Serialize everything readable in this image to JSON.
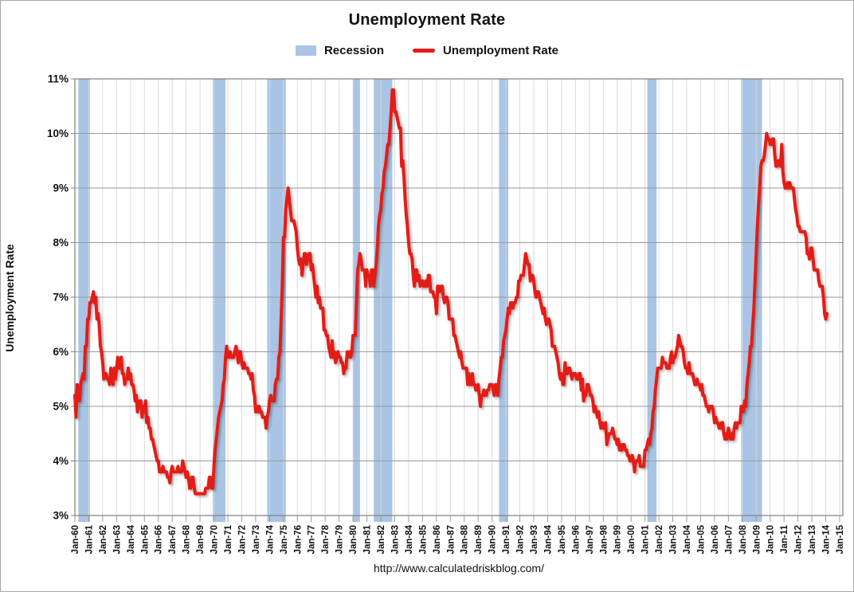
{
  "title": "Unemployment Rate",
  "legend": {
    "recession_label": "Recession",
    "series_label": "Unemployment Rate"
  },
  "footer": {
    "url": "http://www.calculatedriskblog.com/"
  },
  "colors": {
    "line": "#e41b17",
    "recession_band": "#a9c4e4",
    "grid_horizontal": "#999999",
    "grid_vertical": "#d9d9d9",
    "plot_border": "#7f7f7f",
    "tick": "#999999",
    "text": "#000000"
  },
  "chart_data": {
    "type": "line",
    "title": "Unemployment Rate",
    "ylabel": "Unemployment Rate",
    "unit": "percent",
    "ylim": [
      3,
      11
    ],
    "y_tick_labels": [
      "3%",
      "4%",
      "5%",
      "6%",
      "7%",
      "8%",
      "9%",
      "10%",
      "11%"
    ],
    "x_tick_labels": [
      "Jan-60",
      "Jan-61",
      "Jan-62",
      "Jan-63",
      "Jan-64",
      "Jan-65",
      "Jan-66",
      "Jan-67",
      "Jan-68",
      "Jan-69",
      "Jan-70",
      "Jan-71",
      "Jan-72",
      "Jan-73",
      "Jan-74",
      "Jan-75",
      "Jan-76",
      "Jan-77",
      "Jan-78",
      "Jan-79",
      "Jan-80",
      "Jan-81",
      "Jan-82",
      "Jan-83",
      "Jan-84",
      "Jan-85",
      "Jan-86",
      "Jan-87",
      "Jan-88",
      "Jan-89",
      "Jan-90",
      "Jan-91",
      "Jan-92",
      "Jan-93",
      "Jan-94",
      "Jan-95",
      "Jan-96",
      "Jan-97",
      "Jan-98",
      "Jan-99",
      "Jan-00",
      "Jan-01",
      "Jan-02",
      "Jan-03",
      "Jan-04",
      "Jan-05",
      "Jan-06",
      "Jan-07",
      "Jan-08",
      "Jan-09",
      "Jan-10",
      "Jan-11",
      "Jan-12",
      "Jan-13",
      "Jan-14",
      "Jan-15"
    ],
    "xlim_years": [
      1960,
      2015
    ],
    "frequency": "monthly",
    "start_month": "1960-01",
    "grid": true,
    "legend_position": "top",
    "recessions_decimal_years": [
      [
        1960.25,
        1961.083
      ],
      [
        1969.917,
        1970.833
      ],
      [
        1973.833,
        1975.167
      ],
      [
        1980.0,
        1980.5
      ],
      [
        1981.5,
        1982.833
      ],
      [
        1990.5,
        1991.167
      ],
      [
        2001.167,
        2001.833
      ],
      [
        2007.917,
        2009.417
      ]
    ],
    "series": [
      {
        "name": "Unemployment Rate",
        "values": [
          5.2,
          4.8,
          5.4,
          5.2,
          5.1,
          5.4,
          5.5,
          5.6,
          5.5,
          6.1,
          6.1,
          6.6,
          6.6,
          6.9,
          6.9,
          7.0,
          7.1,
          6.9,
          7.0,
          6.6,
          6.7,
          6.5,
          6.1,
          6.0,
          5.8,
          5.5,
          5.6,
          5.6,
          5.5,
          5.5,
          5.4,
          5.7,
          5.6,
          5.4,
          5.7,
          5.5,
          5.7,
          5.9,
          5.7,
          5.7,
          5.9,
          5.6,
          5.6,
          5.4,
          5.5,
          5.5,
          5.7,
          5.5,
          5.6,
          5.4,
          5.4,
          5.3,
          5.1,
          5.2,
          4.9,
          5.0,
          5.1,
          5.1,
          4.8,
          5.0,
          4.9,
          5.1,
          4.7,
          4.8,
          4.6,
          4.6,
          4.4,
          4.4,
          4.3,
          4.2,
          4.1,
          4.0,
          4.0,
          3.8,
          3.8,
          3.8,
          3.9,
          3.8,
          3.8,
          3.8,
          3.7,
          3.7,
          3.6,
          3.8,
          3.9,
          3.8,
          3.8,
          3.8,
          3.8,
          3.9,
          3.8,
          3.8,
          3.8,
          4.0,
          3.9,
          3.8,
          3.7,
          3.8,
          3.7,
          3.5,
          3.5,
          3.7,
          3.7,
          3.5,
          3.4,
          3.4,
          3.4,
          3.4,
          3.4,
          3.4,
          3.4,
          3.4,
          3.4,
          3.5,
          3.5,
          3.5,
          3.7,
          3.7,
          3.5,
          3.5,
          3.9,
          4.2,
          4.4,
          4.6,
          4.8,
          4.9,
          5.0,
          5.1,
          5.4,
          5.5,
          5.9,
          6.1,
          5.9,
          5.9,
          6.0,
          5.9,
          5.9,
          5.9,
          6.0,
          6.1,
          6.0,
          5.8,
          6.0,
          6.0,
          5.8,
          5.7,
          5.8,
          5.7,
          5.7,
          5.7,
          5.6,
          5.6,
          5.5,
          5.6,
          5.3,
          5.2,
          4.9,
          5.0,
          4.9,
          5.0,
          4.9,
          4.9,
          4.8,
          4.8,
          4.8,
          4.6,
          4.8,
          4.9,
          5.1,
          5.2,
          5.1,
          5.1,
          5.1,
          5.4,
          5.5,
          5.5,
          5.9,
          6.0,
          6.6,
          7.2,
          8.1,
          8.1,
          8.6,
          8.8,
          9.0,
          8.8,
          8.6,
          8.4,
          8.4,
          8.4,
          8.3,
          8.2,
          7.9,
          7.7,
          7.6,
          7.7,
          7.4,
          7.6,
          7.8,
          7.8,
          7.6,
          7.7,
          7.8,
          7.8,
          7.5,
          7.6,
          7.4,
          7.2,
          7.0,
          7.2,
          6.9,
          7.0,
          6.8,
          6.8,
          6.8,
          6.4,
          6.4,
          6.3,
          6.3,
          6.1,
          6.0,
          5.9,
          6.2,
          5.9,
          6.0,
          5.8,
          5.9,
          6.0,
          5.9,
          5.9,
          5.8,
          5.8,
          5.6,
          5.7,
          5.7,
          6.0,
          5.9,
          6.0,
          5.9,
          6.0,
          6.3,
          6.3,
          6.3,
          6.9,
          7.5,
          7.6,
          7.8,
          7.7,
          7.5,
          7.5,
          7.5,
          7.2,
          7.5,
          7.4,
          7.4,
          7.2,
          7.5,
          7.5,
          7.2,
          7.4,
          7.6,
          7.9,
          8.3,
          8.5,
          8.6,
          8.9,
          9.0,
          9.3,
          9.4,
          9.6,
          9.8,
          9.8,
          10.1,
          10.4,
          10.8,
          10.8,
          10.4,
          10.4,
          10.3,
          10.2,
          10.1,
          10.1,
          9.4,
          9.5,
          9.2,
          8.8,
          8.5,
          8.3,
          8.0,
          7.8,
          7.8,
          7.7,
          7.4,
          7.2,
          7.5,
          7.5,
          7.3,
          7.4,
          7.2,
          7.3,
          7.3,
          7.2,
          7.2,
          7.3,
          7.2,
          7.4,
          7.4,
          7.1,
          7.1,
          7.1,
          7.0,
          7.0,
          6.7,
          7.2,
          7.2,
          7.1,
          7.2,
          7.2,
          7.0,
          6.9,
          7.0,
          7.0,
          6.9,
          6.6,
          6.6,
          6.6,
          6.6,
          6.3,
          6.3,
          6.2,
          6.1,
          6.0,
          5.9,
          6.0,
          5.8,
          5.7,
          5.7,
          5.7,
          5.7,
          5.4,
          5.6,
          5.4,
          5.4,
          5.6,
          5.4,
          5.4,
          5.3,
          5.3,
          5.4,
          5.2,
          5.0,
          5.2,
          5.2,
          5.3,
          5.2,
          5.2,
          5.3,
          5.3,
          5.4,
          5.4,
          5.4,
          5.3,
          5.2,
          5.4,
          5.4,
          5.2,
          5.5,
          5.7,
          5.9,
          5.9,
          6.2,
          6.3,
          6.4,
          6.6,
          6.8,
          6.7,
          6.9,
          6.9,
          6.8,
          6.9,
          6.9,
          7.0,
          7.0,
          7.3,
          7.3,
          7.4,
          7.4,
          7.4,
          7.6,
          7.8,
          7.7,
          7.6,
          7.6,
          7.3,
          7.4,
          7.4,
          7.3,
          7.1,
          7.0,
          7.1,
          7.1,
          7.0,
          6.9,
          6.8,
          6.7,
          6.8,
          6.6,
          6.5,
          6.6,
          6.6,
          6.5,
          6.4,
          6.1,
          6.1,
          6.1,
          6.0,
          5.9,
          5.8,
          5.6,
          5.5,
          5.6,
          5.4,
          5.4,
          5.8,
          5.6,
          5.6,
          5.7,
          5.7,
          5.6,
          5.5,
          5.6,
          5.6,
          5.6,
          5.5,
          5.5,
          5.6,
          5.6,
          5.3,
          5.5,
          5.1,
          5.2,
          5.2,
          5.4,
          5.4,
          5.3,
          5.2,
          5.2,
          5.1,
          4.9,
          5.0,
          4.9,
          4.8,
          4.9,
          4.7,
          4.6,
          4.7,
          4.6,
          4.6,
          4.7,
          4.3,
          4.4,
          4.5,
          4.5,
          4.5,
          4.6,
          4.5,
          4.4,
          4.4,
          4.3,
          4.4,
          4.2,
          4.3,
          4.2,
          4.3,
          4.3,
          4.2,
          4.2,
          4.1,
          4.1,
          4.0,
          4.0,
          4.1,
          4.0,
          3.8,
          4.0,
          4.0,
          4.0,
          4.1,
          3.9,
          3.9,
          3.9,
          3.9,
          4.2,
          4.2,
          4.3,
          4.4,
          4.3,
          4.5,
          4.6,
          4.9,
          5.0,
          5.3,
          5.5,
          5.7,
          5.7,
          5.7,
          5.7,
          5.9,
          5.8,
          5.8,
          5.8,
          5.7,
          5.7,
          5.7,
          5.9,
          6.0,
          5.8,
          5.9,
          5.9,
          6.0,
          6.1,
          6.3,
          6.2,
          6.1,
          6.1,
          6.0,
          5.8,
          5.7,
          5.7,
          5.6,
          5.8,
          5.6,
          5.6,
          5.6,
          5.5,
          5.4,
          5.4,
          5.5,
          5.4,
          5.4,
          5.3,
          5.4,
          5.2,
          5.2,
          5.1,
          5.0,
          5.0,
          4.9,
          5.0,
          5.0,
          5.0,
          4.9,
          4.7,
          4.8,
          4.7,
          4.7,
          4.6,
          4.6,
          4.7,
          4.7,
          4.5,
          4.4,
          4.5,
          4.4,
          4.6,
          4.5,
          4.4,
          4.5,
          4.4,
          4.6,
          4.7,
          4.6,
          4.7,
          4.7,
          4.7,
          5.0,
          5.0,
          4.9,
          5.1,
          5.0,
          5.4,
          5.6,
          5.8,
          6.1,
          6.1,
          6.5,
          6.8,
          7.3,
          7.8,
          8.3,
          8.7,
          9.0,
          9.4,
          9.5,
          9.5,
          9.6,
          9.8,
          10.0,
          9.9,
          9.9,
          9.8,
          9.8,
          9.9,
          9.9,
          9.6,
          9.4,
          9.4,
          9.5,
          9.5,
          9.4,
          9.8,
          9.3,
          9.1,
          9.0,
          9.0,
          9.1,
          9.0,
          9.1,
          9.0,
          9.0,
          9.0,
          8.8,
          8.6,
          8.5,
          8.3,
          8.3,
          8.2,
          8.2,
          8.2,
          8.2,
          8.2,
          8.1,
          7.8,
          7.8,
          7.7,
          7.9,
          7.9,
          7.7,
          7.5,
          7.5,
          7.5,
          7.5,
          7.3,
          7.2,
          7.2,
          7.2,
          7.0,
          6.7,
          6.6,
          6.7
        ]
      }
    ]
  }
}
